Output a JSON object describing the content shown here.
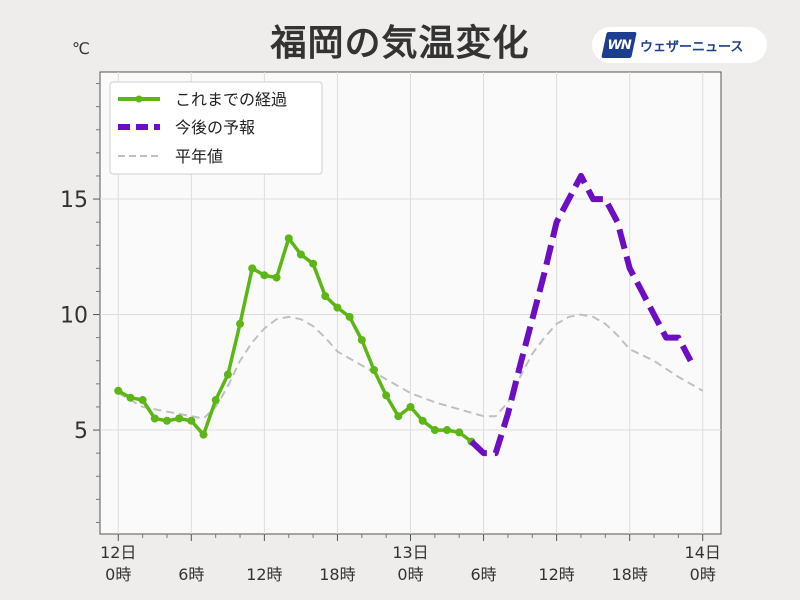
{
  "title": "福岡の気温変化",
  "brand": {
    "mark": "WN",
    "name": "ウェザーニュース"
  },
  "chart_data": {
    "type": "line",
    "y_unit": "℃",
    "ylim": [
      0.5,
      20.5
    ],
    "y_ticks": [
      5,
      10,
      15
    ],
    "xlim": [
      -1.5,
      49.5
    ],
    "x_ticks": [
      {
        "x": 0,
        "line1": "12日",
        "line2": "0時"
      },
      {
        "x": 6,
        "line1": "",
        "line2": "6時"
      },
      {
        "x": 12,
        "line1": "",
        "line2": "12時"
      },
      {
        "x": 18,
        "line1": "",
        "line2": "18時"
      },
      {
        "x": 24,
        "line1": "13日",
        "line2": "0時"
      },
      {
        "x": 30,
        "line1": "",
        "line2": "6時"
      },
      {
        "x": 36,
        "line1": "",
        "line2": "12時"
      },
      {
        "x": 42,
        "line1": "",
        "line2": "18時"
      },
      {
        "x": 48,
        "line1": "14日",
        "line2": "0時"
      }
    ],
    "grid": true,
    "legend_position": "top-left",
    "series": [
      {
        "name": "これまでの経過",
        "color": "#5cb615",
        "style": "solid-markers",
        "x": [
          0,
          1,
          2,
          3,
          4,
          5,
          6,
          7,
          8,
          9,
          10,
          11,
          12,
          13,
          14,
          15,
          16,
          17,
          18,
          19,
          20,
          21,
          22,
          23,
          24,
          25,
          26,
          27,
          28,
          29
        ],
        "y": [
          6.7,
          6.4,
          6.3,
          5.5,
          5.4,
          5.5,
          5.4,
          4.8,
          6.3,
          7.4,
          9.6,
          12.0,
          11.7,
          11.6,
          13.3,
          12.6,
          12.2,
          10.8,
          10.3,
          9.9,
          8.9,
          7.6,
          6.5,
          5.6,
          6.0,
          5.4,
          5.0,
          5.0,
          4.9,
          4.5
        ]
      },
      {
        "name": "今後の予報",
        "color": "#6d0ec2",
        "style": "dashed-thick",
        "x": [
          29,
          30,
          31,
          32,
          33,
          34,
          35,
          36,
          37,
          38,
          39,
          40,
          41,
          42,
          43,
          44,
          45,
          46,
          47
        ],
        "y": [
          4.5,
          4.0,
          4.0,
          5.7,
          7.8,
          9.8,
          11.8,
          14.0,
          15.0,
          16.0,
          15.0,
          15.0,
          14.0,
          12.0,
          11.0,
          10.0,
          9.0,
          9.0,
          8.0
        ]
      },
      {
        "name": "平年値",
        "color": "#c0c0c0",
        "style": "dashed-thin",
        "x": [
          0,
          2,
          4,
          6,
          7,
          8,
          9,
          10,
          11,
          12,
          13,
          14,
          15,
          16,
          17,
          18,
          20,
          22,
          24,
          26,
          28,
          30,
          31,
          32,
          33,
          34,
          35,
          36,
          37,
          38,
          39,
          40,
          41,
          42,
          44,
          46,
          48
        ],
        "y": [
          6.6,
          6.0,
          5.8,
          5.6,
          5.5,
          6.0,
          6.9,
          8.0,
          8.8,
          9.4,
          9.8,
          9.9,
          9.8,
          9.5,
          9.0,
          8.4,
          7.8,
          7.2,
          6.6,
          6.2,
          5.9,
          5.6,
          5.6,
          6.2,
          7.3,
          8.3,
          9.0,
          9.6,
          9.9,
          10.0,
          9.9,
          9.6,
          9.1,
          8.5,
          8.0,
          7.3,
          6.7
        ]
      }
    ]
  }
}
